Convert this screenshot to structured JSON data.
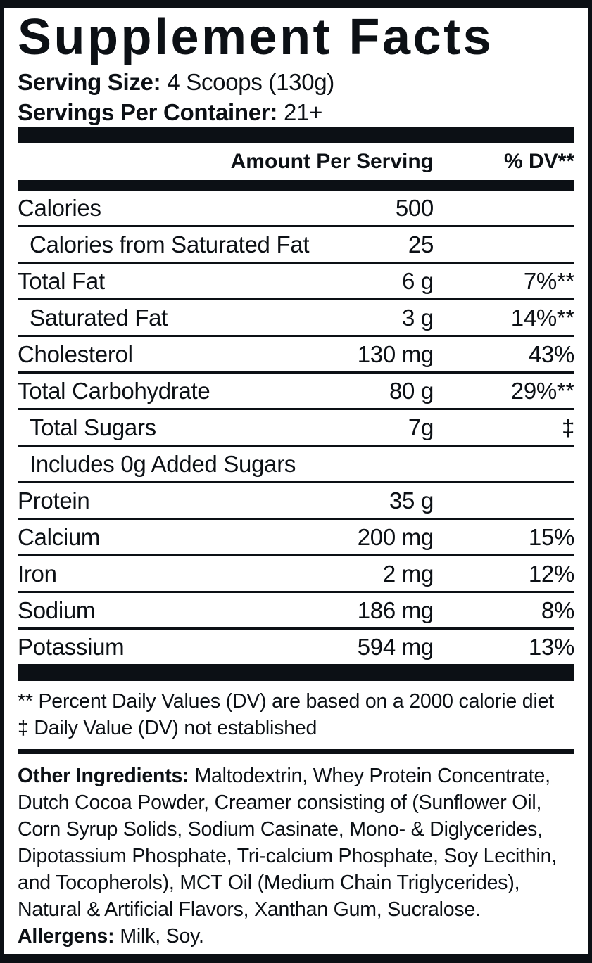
{
  "colors": {
    "ink": "#0c1015",
    "paper": "#ffffff"
  },
  "label": {
    "title": "Supplement Facts",
    "serving": [
      {
        "label": "Serving Size:",
        "value": "4 Scoops (130g)"
      },
      {
        "label": "Servings Per Container:",
        "value": "21+"
      }
    ],
    "table": {
      "header": {
        "amount": "Amount Per Serving",
        "dv": "% DV**"
      },
      "rows": [
        {
          "name": "Calories",
          "amount": "500",
          "dv": ""
        },
        {
          "name": "Calories from Saturated Fat",
          "amount": "25",
          "dv": ""
        },
        {
          "name": "Total Fat",
          "amount": "6 g",
          "dv": "7%**"
        },
        {
          "name": "Saturated Fat",
          "amount": "3 g",
          "dv": "14%**"
        },
        {
          "name": "Cholesterol",
          "amount": "130 mg",
          "dv": "43%"
        },
        {
          "name": "Total Carbohydrate",
          "amount": "80 g",
          "dv": "29%**"
        },
        {
          "name": "Total Sugars",
          "amount": "7g",
          "dv": "‡"
        },
        {
          "name": "Includes 0g Added Sugars",
          "amount": "",
          "dv": ""
        },
        {
          "name": "Protein",
          "amount": "35 g",
          "dv": ""
        },
        {
          "name": "Calcium",
          "amount": "200 mg",
          "dv": "15%"
        },
        {
          "name": "Iron",
          "amount": "2 mg",
          "dv": "12%"
        },
        {
          "name": "Sodium",
          "amount": "186 mg",
          "dv": "8%"
        },
        {
          "name": "Potassium",
          "amount": "594 mg",
          "dv": "13%"
        }
      ]
    },
    "footnotes": [
      "** Percent Daily Values (DV) are based on a 2000 calorie diet",
      "‡ Daily Value (DV) not established"
    ],
    "other_ingredients": {
      "label": "Other Ingredients:",
      "lines": [
        "Maltodextrin, Whey Protein Concentrate,",
        "Dutch Cocoa Powder, Creamer consisting of (Sunflower Oil,",
        "Corn Syrup Solids, Sodium Casinate, Mono- & Diglycerides,",
        "Dipotassium Phosphate, Tri-calcium Phosphate, Soy Lecithin,",
        "and Tocopherols), MCT Oil (Medium Chain Triglycerides),",
        "Natural & Artificial Flavors, Xanthan Gum, Sucralose."
      ]
    },
    "allergens": {
      "label": "Allergens:",
      "value": "Milk, Soy."
    }
  }
}
